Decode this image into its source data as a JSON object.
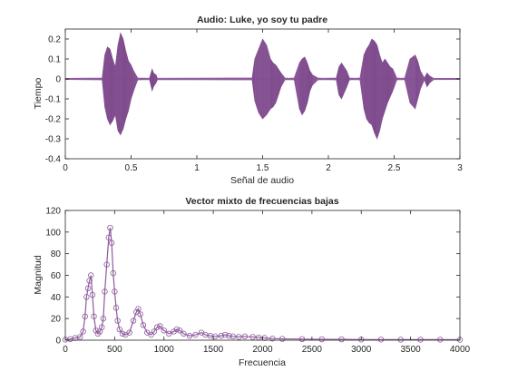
{
  "figure": {
    "background": "#ffffff",
    "series_color": "#8e5a9c",
    "axis_color": "#262626"
  },
  "chart_data": [
    {
      "type": "line",
      "title": "Audio: Luke, yo soy tu padre",
      "xlabel": "Señal de audio",
      "ylabel": "Tiempo",
      "xlim": [
        0,
        3
      ],
      "ylim": [
        -0.4,
        0.25
      ],
      "xticks": [
        0,
        0.5,
        1,
        1.5,
        2,
        2.5,
        3
      ],
      "xtick_labels": [
        "0",
        "0.5",
        "1",
        "1.5",
        "2",
        "2.5",
        "3"
      ],
      "yticks": [
        -0.4,
        -0.3,
        -0.2,
        -0.1,
        0,
        0.1,
        0.2
      ],
      "ytick_labels": [
        "-0.4",
        "-0.3",
        "-0.2",
        "-0.1",
        "0",
        "0.1",
        "0.2"
      ],
      "grid": false,
      "series": [
        {
          "style": "filled-envelope",
          "x": [
            0.0,
            0.28,
            0.3,
            0.32,
            0.34,
            0.36,
            0.38,
            0.4,
            0.42,
            0.44,
            0.46,
            0.48,
            0.5,
            0.52,
            0.55,
            0.64,
            0.66,
            0.67,
            0.69,
            0.7,
            1.42,
            1.44,
            1.47,
            1.5,
            1.53,
            1.56,
            1.58,
            1.6,
            1.62,
            1.64,
            1.67,
            1.7,
            1.74,
            1.78,
            1.8,
            1.82,
            1.84,
            1.86,
            1.88,
            1.92,
            1.96,
            2.06,
            2.08,
            2.1,
            2.12,
            2.14,
            2.16,
            2.2,
            2.24,
            2.27,
            2.29,
            2.31,
            2.33,
            2.35,
            2.37,
            2.39,
            2.41,
            2.43,
            2.45,
            2.47,
            2.49,
            2.52,
            2.55,
            2.58,
            2.62,
            2.66,
            2.68,
            2.7,
            2.73,
            2.75,
            2.77,
            2.8,
            3.0
          ],
          "upper": [
            0.003,
            0.005,
            0.12,
            0.16,
            0.15,
            0.1,
            0.06,
            0.17,
            0.23,
            0.2,
            0.14,
            0.09,
            0.07,
            0.04,
            0.005,
            0.004,
            0.05,
            0.03,
            0.02,
            0.004,
            0.005,
            0.1,
            0.15,
            0.2,
            0.17,
            0.1,
            0.08,
            0.07,
            0.05,
            0.03,
            0.005,
            0.004,
            0.005,
            0.08,
            0.1,
            0.11,
            0.08,
            0.04,
            0.02,
            0.005,
            0.004,
            0.005,
            0.06,
            0.08,
            0.06,
            0.04,
            0.005,
            0.004,
            0.005,
            0.12,
            0.15,
            0.17,
            0.2,
            0.19,
            0.17,
            0.12,
            0.08,
            0.1,
            0.08,
            0.06,
            0.05,
            0.005,
            0.004,
            0.005,
            0.1,
            0.12,
            0.09,
            0.04,
            0.005,
            0.03,
            0.015,
            0.004,
            0.003
          ],
          "lower": [
            -0.003,
            -0.005,
            -0.14,
            -0.2,
            -0.23,
            -0.21,
            -0.18,
            -0.26,
            -0.28,
            -0.25,
            -0.2,
            -0.16,
            -0.1,
            -0.06,
            -0.005,
            -0.004,
            -0.06,
            -0.04,
            -0.02,
            -0.004,
            -0.005,
            -0.11,
            -0.17,
            -0.2,
            -0.18,
            -0.15,
            -0.14,
            -0.12,
            -0.08,
            -0.04,
            -0.005,
            -0.004,
            -0.005,
            -0.15,
            -0.18,
            -0.16,
            -0.12,
            -0.06,
            -0.03,
            -0.005,
            -0.004,
            -0.005,
            -0.08,
            -0.1,
            -0.07,
            -0.04,
            -0.005,
            -0.004,
            -0.005,
            -0.15,
            -0.2,
            -0.22,
            -0.23,
            -0.27,
            -0.3,
            -0.26,
            -0.2,
            -0.16,
            -0.12,
            -0.09,
            -0.06,
            -0.005,
            -0.004,
            -0.005,
            -0.12,
            -0.15,
            -0.1,
            -0.05,
            -0.005,
            -0.04,
            -0.02,
            -0.004,
            -0.003
          ]
        }
      ]
    },
    {
      "type": "line",
      "title": "Vector mixto de frecuencias bajas",
      "xlabel": "Frecuencia",
      "ylabel": "Magnitud",
      "xlim": [
        0,
        4000
      ],
      "ylim": [
        0,
        120
      ],
      "xticks": [
        0,
        500,
        1000,
        1500,
        2000,
        2500,
        3000,
        3500,
        4000
      ],
      "xtick_labels": [
        "0",
        "500",
        "1000",
        "1500",
        "2000",
        "2500",
        "3000",
        "3500",
        "4000"
      ],
      "yticks": [
        0,
        20,
        40,
        60,
        80,
        100,
        120
      ],
      "ytick_labels": [
        "0",
        "20",
        "40",
        "60",
        "80",
        "100",
        "120"
      ],
      "grid": false,
      "marker": "circle",
      "series": [
        {
          "x": [
            0,
            50,
            100,
            150,
            180,
            200,
            215,
            230,
            245,
            260,
            275,
            290,
            310,
            330,
            350,
            370,
            385,
            400,
            420,
            440,
            455,
            470,
            485,
            500,
            515,
            530,
            550,
            580,
            610,
            650,
            690,
            720,
            740,
            760,
            790,
            830,
            870,
            900,
            930,
            960,
            1000,
            1050,
            1100,
            1130,
            1160,
            1200,
            1260,
            1320,
            1380,
            1420,
            1470,
            1520,
            1580,
            1620,
            1660,
            1700,
            1760,
            1820,
            1900,
            1960,
            2020,
            2100,
            2200,
            2400,
            2600,
            2800,
            3000,
            3200,
            3400,
            3600,
            3800,
            4000
          ],
          "y": [
            0.5,
            1,
            2,
            3,
            8,
            22,
            40,
            48,
            55,
            60,
            42,
            22,
            9,
            6,
            8,
            12,
            20,
            45,
            70,
            95,
            104,
            90,
            62,
            45,
            30,
            18,
            10,
            6,
            5,
            7,
            18,
            26,
            29,
            24,
            14,
            7,
            5,
            8,
            12,
            13,
            9,
            6,
            8,
            10,
            9,
            6,
            4,
            5,
            7,
            5,
            4,
            3.5,
            4,
            5,
            4,
            3.5,
            3,
            3.5,
            3,
            2.5,
            2,
            1.5,
            1.2,
            1,
            0.8,
            0.8,
            0.6,
            0.6,
            0.5,
            0.5,
            0.5,
            0.4
          ]
        }
      ]
    }
  ]
}
